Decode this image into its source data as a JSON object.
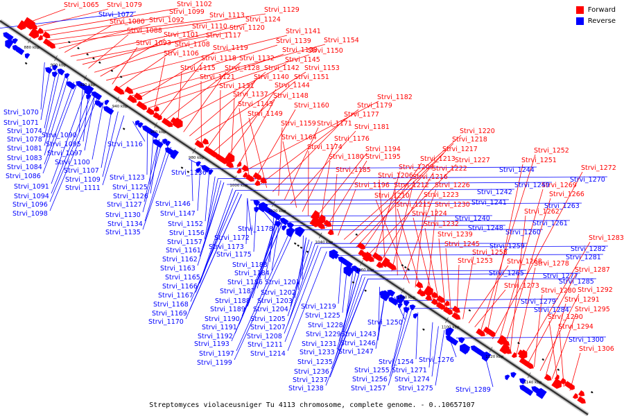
{
  "legend": {
    "forward": {
      "label": "Forward",
      "color": "#ff0000"
    },
    "reverse": {
      "label": "Reverse",
      "color": "#0000ff"
    }
  },
  "caption": "Streptomyces violaceusniger Tu 4113 chromosome, complete genome. - 0..10657107",
  "axis_ticks": [
    "880 kbp",
    "900 kbp",
    "920 kbp",
    "940 kbp",
    "960 kbp",
    "980 kbp",
    "1000 kbp",
    "1020 kbp",
    "1040 kbp",
    "1060 kbp",
    "1080 kbp",
    "1100 kbp",
    "1120 kbp",
    "1140 kbp"
  ],
  "forward_labels": [
    "Strvi_1065",
    "Strvi_1079",
    "Strvi_1102",
    "Strvi_1099",
    "Strvi_1113",
    "Strvi_1129",
    "Strvi_1092",
    "Strvi_1080",
    "Strvi_1110",
    "Strvi_1120",
    "Strvi_1124",
    "Strvi_1088",
    "Strvi_1117",
    "Strvi_1101",
    "Strvi_1141",
    "Strvi_1093",
    "Strvi_1108",
    "Strvi_1139",
    "Strvi_1154",
    "Strvi_1119",
    "Strvi_1138",
    "Strvi_1150",
    "Strvi_1106",
    "Strvi_1118",
    "Strvi_1132",
    "Strvi_1145",
    "Strvi_1115",
    "Strvi_1128",
    "Strvi_1142",
    "Strvi_1153",
    "Strvi_1121",
    "Strvi_1140",
    "Strvi_1151",
    "Strvi_1131",
    "Strvi_1144",
    "Strvi_1137",
    "Strvi_1148",
    "Strvi_1182",
    "Strvi_1143",
    "Strvi_1160",
    "Strvi_1179",
    "Strvi_1149",
    "Strvi_1177",
    "Strvi_1159",
    "Strvi_1171",
    "Strvi_1181",
    "Strvi_1164",
    "Strvi_1176",
    "Strvi_1174",
    "Strvi_1194",
    "Strvi_1180",
    "Strvi_1195",
    "Strvi_1185",
    "Strvi_1196",
    "Strvi_1220",
    "Strvi_1218",
    "Strvi_1217",
    "Strvi_1213",
    "Strvi_1227",
    "Strvi_1209",
    "Strvi_1222",
    "Strvi_1206",
    "Strvi_1216",
    "Strvi_1212",
    "Strvi_1226",
    "Strvi_1210",
    "Strvi_1223",
    "Strvi_1215",
    "Strvi_1230",
    "Strvi_1224",
    "Strvi_1232",
    "Strvi_1239",
    "Strvi_1245",
    "Strvi_1253",
    "Strvi_1258",
    "Strvi_1268",
    "Strvi_1273",
    "Strvi_1252",
    "Strvi_1251",
    "Strvi_1272",
    "Strvi_1269",
    "Strvi_1266",
    "Strvi_1262",
    "Strvi_1278",
    "Strvi_1283",
    "Strvi_1287",
    "Strvi_1280",
    "Strvi_1292",
    "Strvi_1291",
    "Strvi_1295",
    "Strvi_1290",
    "Strvi_1294",
    "Strvi_1306"
  ],
  "reverse_labels": [
    "Strvi_1072",
    "Strvi_1070",
    "Strvi_1071",
    "Strvi_1074",
    "Strvi_1078",
    "Strvi_1090",
    "Strvi_1081",
    "Strvi_1095",
    "Strvi_1083",
    "Strvi_1097",
    "Strvi_1084",
    "Strvi_1100",
    "Strvi_1086",
    "Strvi_1107",
    "Strvi_1109",
    "Strvi_1091",
    "Strvi_1111",
    "Strvi_1094",
    "Strvi_1096",
    "Strvi_1098",
    "Strvi_1116",
    "Strvi_1123",
    "Strvi_1136",
    "Strvi_1125",
    "Strvi_1126",
    "Strvi_1127",
    "Strvi_1146",
    "Strvi_1130",
    "Strvi_1147",
    "Strvi_1134",
    "Strvi_1152",
    "Strvi_1135",
    "Strvi_1156",
    "Strvi_1157",
    "Strvi_1178",
    "Strvi_1172",
    "Strvi_1161",
    "Strvi_1173",
    "Strvi_1162",
    "Strvi_1175",
    "Strvi_1163",
    "Strvi_1183",
    "Strvi_1165",
    "Strvi_1184",
    "Strvi_1166",
    "Strvi_1186",
    "Strvi_1201",
    "Strvi_1167",
    "Strvi_1187",
    "Strvi_1202",
    "Strvi_1168",
    "Strvi_1188",
    "Strvi_1203",
    "Strvi_1169",
    "Strvi_1189",
    "Strvi_1204",
    "Strvi_1170",
    "Strvi_1190",
    "Strvi_1205",
    "Strvi_1219",
    "Strvi_1191",
    "Strvi_1207",
    "Strvi_1225",
    "Strvi_1192",
    "Strvi_1208",
    "Strvi_1228",
    "Strvi_1193",
    "Strvi_1211",
    "Strvi_1229",
    "Strvi_1197",
    "Strvi_1214",
    "Strvi_1231",
    "Strvi_1199",
    "Strvi_1233",
    "Strvi_1235",
    "Strvi_1236",
    "Strvi_1237",
    "Strvi_1238",
    "Strvi_1250",
    "Strvi_1243",
    "Strvi_1246",
    "Strvi_1247",
    "Strvi_1254",
    "Strvi_1255",
    "Strvi_1256",
    "Strvi_1257",
    "Strvi_1271",
    "Strvi_1274",
    "Strvi_1275",
    "Strvi_1276",
    "Strvi_1289",
    "Strvi_1244",
    "Strvi_1249",
    "Strvi_1242",
    "Strvi_1241",
    "Strvi_1240",
    "Strvi_1248",
    "Strvi_1261",
    "Strvi_1263",
    "Strvi_1260",
    "Strvi_1259",
    "Strvi_1265",
    "Strvi_1270",
    "Strvi_1282",
    "Strvi_1281",
    "Strvi_1285",
    "Strvi_1277",
    "Strvi_1279",
    "Strvi_1284",
    "Strvi_1300"
  ]
}
